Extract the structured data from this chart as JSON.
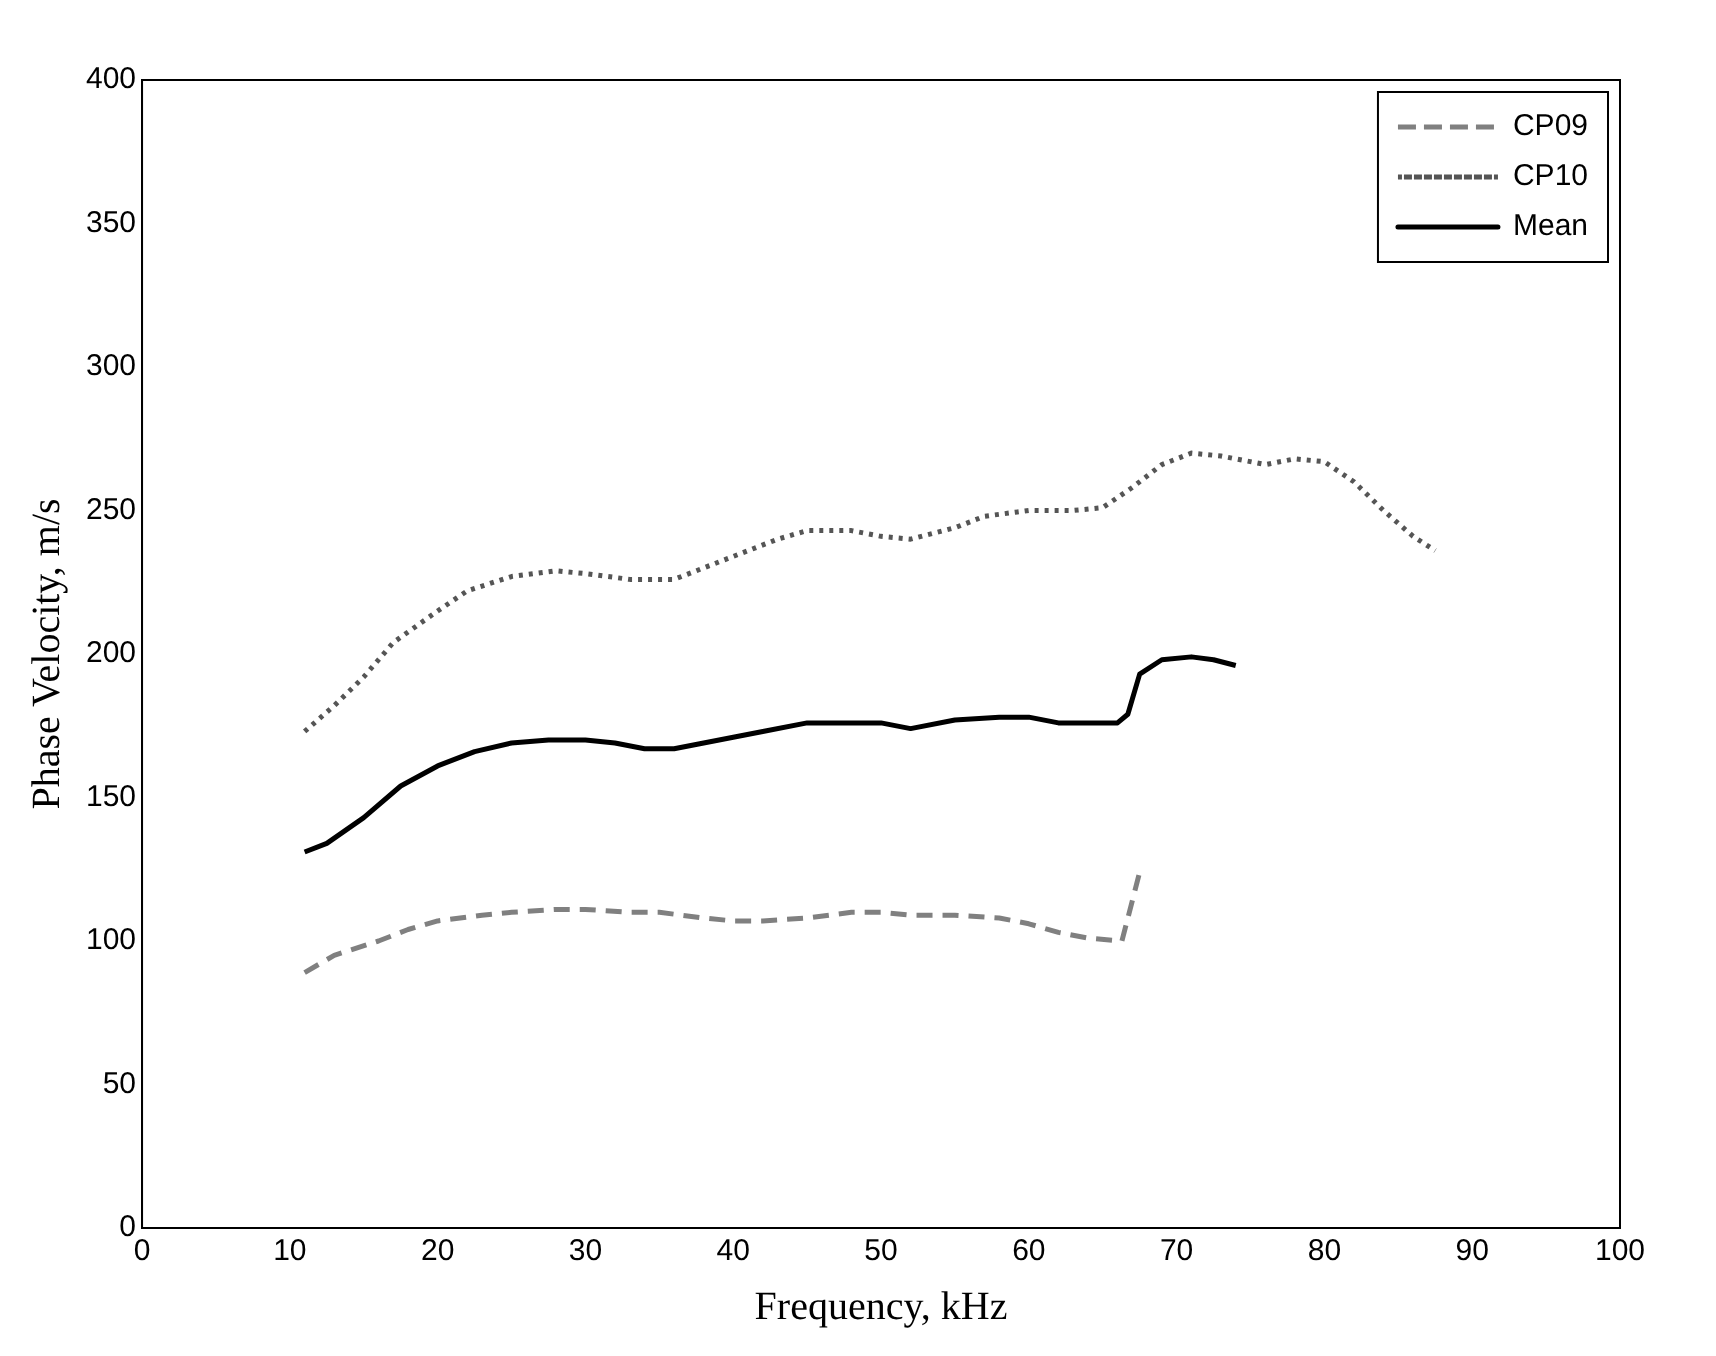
{
  "chart_data": {
    "type": "line",
    "xlabel": "Frequency, kHz",
    "ylabel": "Phase Velocity, m/s",
    "xlim": [
      0,
      100
    ],
    "xticks": [
      0,
      10,
      20,
      30,
      40,
      50,
      60,
      70,
      80,
      90,
      100
    ],
    "ylim": [
      0,
      400
    ],
    "yticks": [
      0,
      50,
      100,
      150,
      200,
      250,
      300,
      350,
      400
    ],
    "grid": false,
    "legend": "top right",
    "marker": "none",
    "series": [
      {
        "name": "CP09",
        "color": "#808080",
        "line_style": "dashed",
        "x": [
          11,
          13,
          16,
          18,
          20,
          23,
          25,
          28,
          30,
          33,
          35,
          38,
          40,
          42,
          45,
          48,
          50,
          52,
          55,
          58,
          60,
          62,
          64,
          66.3,
          67.5
        ],
        "values": [
          89,
          95,
          100,
          104,
          107,
          109,
          110,
          111,
          111,
          110,
          110,
          108,
          107,
          107,
          108,
          110,
          110,
          109,
          109,
          108,
          106,
          103,
          101,
          100,
          124
        ]
      },
      {
        "name": "CP10",
        "color": "#555555",
        "line_style": "dotted",
        "x": [
          11,
          13,
          15,
          17,
          20,
          22,
          25,
          28,
          30,
          33,
          36,
          38,
          40,
          43,
          45,
          48,
          50,
          52,
          55,
          57,
          60,
          63,
          65,
          67,
          69,
          71,
          73,
          76,
          78,
          80,
          82,
          84,
          86,
          87.5
        ],
        "values": [
          173,
          182,
          192,
          204,
          215,
          222,
          227,
          229,
          228,
          226,
          226,
          230,
          234,
          240,
          243,
          243,
          241,
          240,
          244,
          248,
          250,
          250,
          251,
          258,
          266,
          270,
          269,
          266,
          268,
          267,
          260,
          250,
          241,
          236
        ]
      },
      {
        "name": "Mean",
        "color": "#000000",
        "line_style": "solid",
        "x": [
          11,
          12.5,
          15,
          17.5,
          20,
          22.5,
          25,
          27.5,
          30,
          32,
          34,
          36,
          38,
          40,
          42,
          45,
          48,
          50,
          52,
          55,
          58,
          60,
          62,
          64,
          66,
          66.7,
          67.5,
          69,
          71,
          72.5,
          74
        ],
        "values": [
          131,
          134,
          143,
          154,
          161,
          166,
          169,
          170,
          170,
          169,
          167,
          167,
          169,
          171,
          173,
          176,
          176,
          176,
          174,
          177,
          178,
          178,
          176,
          176,
          176,
          179,
          193,
          198,
          199,
          198,
          196
        ]
      }
    ]
  }
}
